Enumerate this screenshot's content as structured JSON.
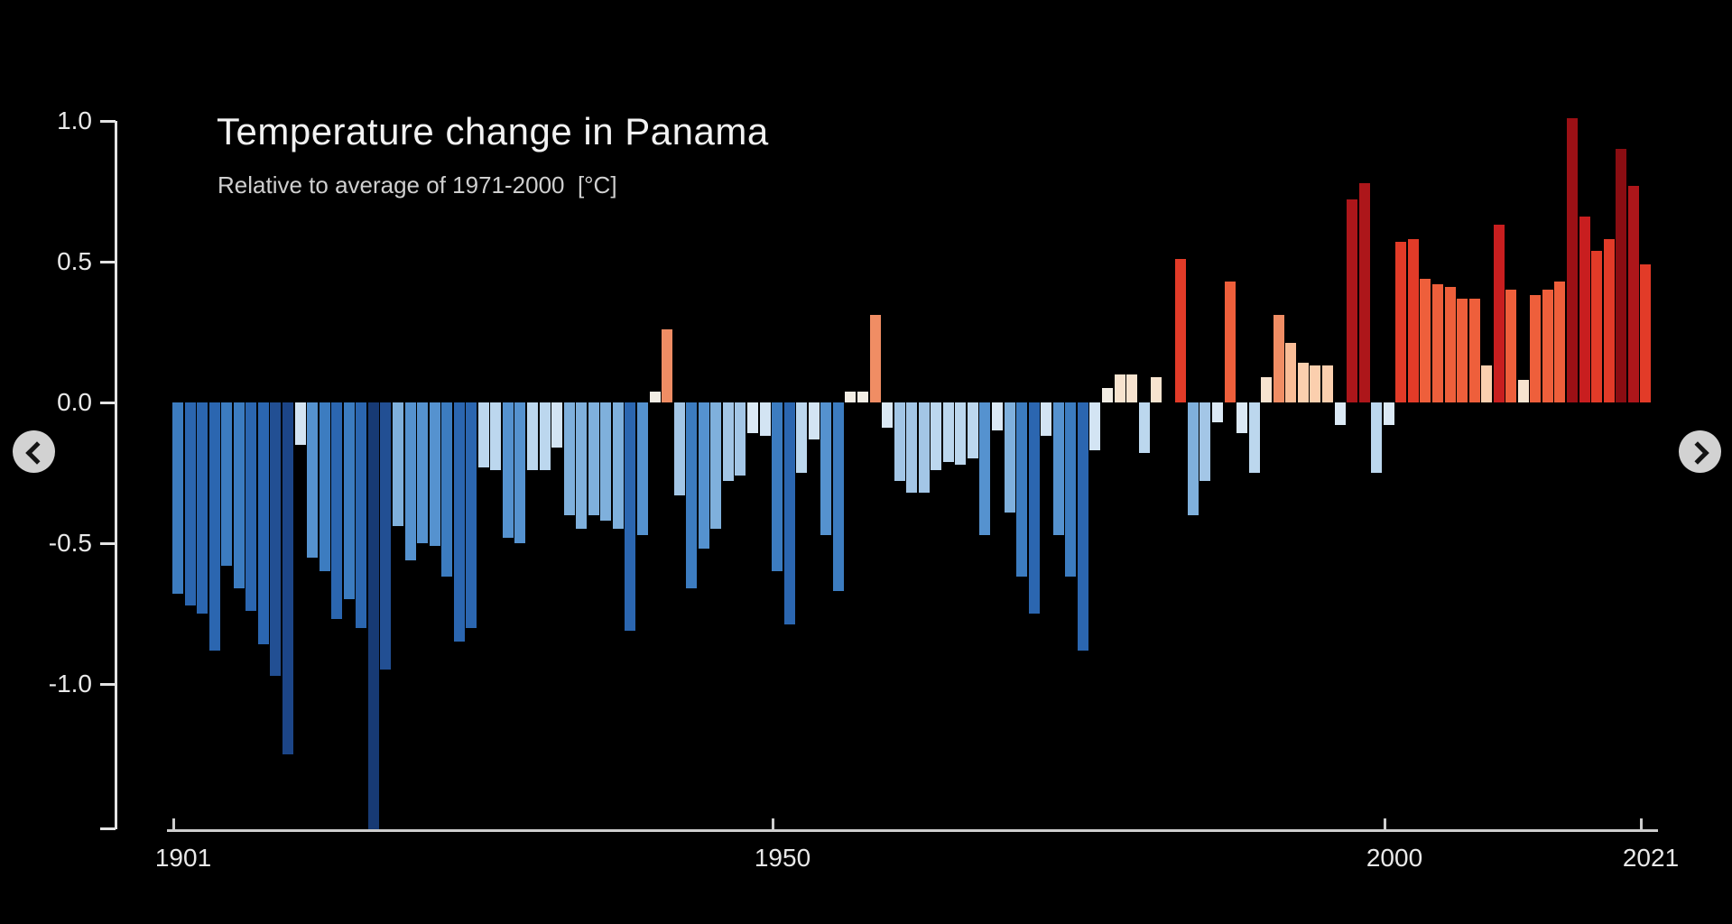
{
  "chart_data": {
    "type": "bar",
    "title": "Temperature change in Panama",
    "subtitle": "Relative to average of 1971-2000  [°C]",
    "unit": "°C",
    "xlabel": "",
    "ylabel": "",
    "grid": false,
    "legend": "none",
    "ylim": [
      -1.55,
      1.05
    ],
    "ytick_values": [
      1.0,
      0.5,
      0.0,
      -0.5,
      -1.0
    ],
    "ytick_labels": [
      "1.0",
      "0.5",
      "0.0",
      "-0.5",
      "-1.0"
    ],
    "xtick_years": [
      1901,
      1950,
      2000,
      2021
    ],
    "xtick_labels": [
      "1901",
      "1950",
      "2000",
      "2021"
    ],
    "years": [
      1901,
      1902,
      1903,
      1904,
      1905,
      1906,
      1907,
      1908,
      1909,
      1910,
      1911,
      1912,
      1913,
      1914,
      1915,
      1916,
      1917,
      1918,
      1919,
      1920,
      1921,
      1922,
      1923,
      1924,
      1925,
      1926,
      1927,
      1928,
      1929,
      1930,
      1931,
      1932,
      1933,
      1934,
      1935,
      1936,
      1937,
      1938,
      1939,
      1940,
      1941,
      1942,
      1943,
      1944,
      1945,
      1946,
      1947,
      1948,
      1949,
      1950,
      1951,
      1952,
      1953,
      1954,
      1955,
      1956,
      1957,
      1958,
      1959,
      1960,
      1961,
      1962,
      1963,
      1964,
      1965,
      1966,
      1967,
      1968,
      1969,
      1970,
      1971,
      1972,
      1973,
      1974,
      1975,
      1976,
      1977,
      1978,
      1979,
      1980,
      1981,
      1982,
      1983,
      1984,
      1985,
      1986,
      1987,
      1988,
      1989,
      1990,
      1991,
      1992,
      1993,
      1994,
      1995,
      1996,
      1997,
      1998,
      1999,
      2000,
      2001,
      2002,
      2003,
      2004,
      2005,
      2006,
      2007,
      2008,
      2009,
      2010,
      2011,
      2012,
      2013,
      2014,
      2015,
      2016,
      2017,
      2018,
      2019,
      2020,
      2021
    ],
    "values": [
      -0.68,
      -0.72,
      -0.75,
      -0.88,
      -0.58,
      -0.66,
      -0.74,
      -0.86,
      -0.97,
      -1.25,
      -0.15,
      -0.55,
      -0.6,
      -0.77,
      -0.7,
      -0.8,
      -1.52,
      -0.95,
      -0.44,
      -0.56,
      -0.5,
      -0.51,
      -0.62,
      -0.85,
      -0.8,
      -0.23,
      -0.24,
      -0.48,
      -0.5,
      -0.24,
      -0.24,
      -0.16,
      -0.4,
      -0.45,
      -0.4,
      -0.42,
      -0.45,
      -0.81,
      -0.47,
      0.04,
      0.26,
      -0.33,
      -0.66,
      -0.52,
      -0.45,
      -0.28,
      -0.26,
      -0.11,
      -0.12,
      -0.6,
      -0.79,
      -0.25,
      -0.13,
      -0.47,
      -0.67,
      0.04,
      0.04,
      0.31,
      -0.09,
      -0.28,
      -0.32,
      -0.32,
      -0.24,
      -0.21,
      -0.22,
      -0.2,
      -0.47,
      -0.1,
      -0.39,
      -0.62,
      -0.75,
      -0.12,
      -0.47,
      -0.62,
      -0.88,
      -0.17,
      0.05,
      0.1,
      0.1,
      -0.18,
      0.09,
      0.0,
      0.51,
      -0.4,
      -0.28,
      -0.07,
      0.43,
      -0.11,
      -0.25,
      0.09,
      0.31,
      0.21,
      0.14,
      0.13,
      0.13,
      -0.08,
      0.72,
      0.78,
      -0.25,
      -0.08,
      0.57,
      0.58,
      0.44,
      0.42,
      0.41,
      0.37,
      0.37,
      0.13,
      0.63,
      0.4,
      0.08,
      0.38,
      0.4,
      0.43,
      1.01,
      0.66,
      0.54,
      0.58,
      0.9,
      0.77,
      0.49
    ],
    "palette_positive": [
      {
        "max": 0.07,
        "color": "#f2ede4"
      },
      {
        "max": 0.12,
        "color": "#f7e3cf"
      },
      {
        "max": 0.18,
        "color": "#fbcfae"
      },
      {
        "max": 0.24,
        "color": "#f9bd97"
      },
      {
        "max": 0.34,
        "color": "#f08d64"
      },
      {
        "max": 0.47,
        "color": "#ee5f3b"
      },
      {
        "max": 0.6,
        "color": "#e23b28"
      },
      {
        "max": 0.7,
        "color": "#c81e1f"
      },
      {
        "max": 0.82,
        "color": "#ad161a"
      },
      {
        "max": 0.95,
        "color": "#8a0d12"
      },
      {
        "max": 99,
        "color": "#9c1015"
      }
    ],
    "palette_negative": [
      {
        "max": 0.07,
        "color": "#e4edf6"
      },
      {
        "max": 0.12,
        "color": "#dbe9f5"
      },
      {
        "max": 0.18,
        "color": "#d3e4f3"
      },
      {
        "max": 0.26,
        "color": "#bcd7ee"
      },
      {
        "max": 0.34,
        "color": "#a3c6e6"
      },
      {
        "max": 0.46,
        "color": "#7fb0dc"
      },
      {
        "max": 0.58,
        "color": "#5592cf"
      },
      {
        "max": 0.72,
        "color": "#3c7cc0"
      },
      {
        "max": 0.9,
        "color": "#2b66b0"
      },
      {
        "max": 1.1,
        "color": "#224f93"
      },
      {
        "max": 1.4,
        "color": "#1c4587"
      },
      {
        "max": 99,
        "color": "#173a74"
      }
    ],
    "axis_color": "#e3e3e3",
    "background_color": "#000000"
  },
  "carousel": {
    "prev_icon": "chevron-left",
    "next_icon": "chevron-right"
  }
}
